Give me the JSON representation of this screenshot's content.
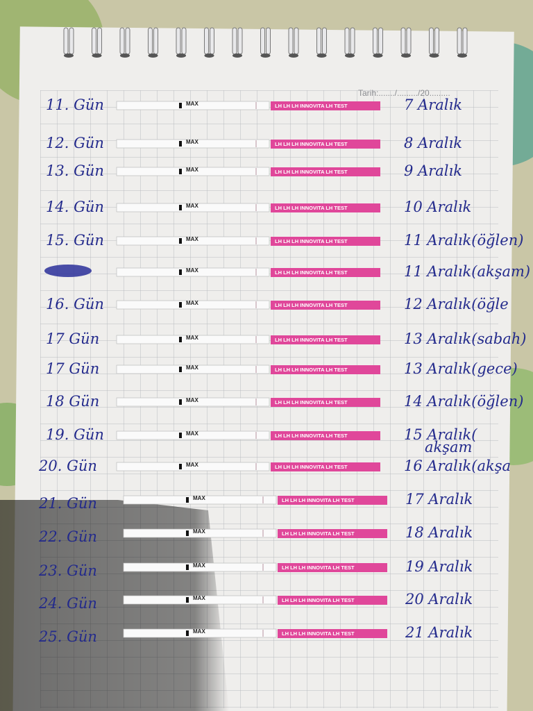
{
  "header": {
    "date_field": "Tarih:......./........./20........."
  },
  "strip": {
    "brand": "LH LH LH INNOVITA LH TEST",
    "max": "MAX"
  },
  "rows": [
    {
      "day": "11. Gün",
      "date": "7 Aralık"
    },
    {
      "day": "12. Gün",
      "date": "8 Aralık"
    },
    {
      "day": "13. Gün",
      "date": "9 Aralık"
    },
    {
      "day": "14. Gün",
      "date": "10 Aralık"
    },
    {
      "day": "15. Gün",
      "date": "11 Aralık(öğlen)"
    },
    {
      "date": "11 Aralık(akşam)"
    },
    {
      "day": "16. Gün",
      "date": "12 Aralık(öğle"
    },
    {
      "day": "17 Gün",
      "date": "13 Aralık(sabah)"
    },
    {
      "day": "17 Gün",
      "date": "13 Aralık(gece)"
    },
    {
      "day": "18 Gün",
      "date": "14 Aralık(öğlen)"
    },
    {
      "day": "19. Gün",
      "date": "15 Aralık(",
      "note": "akşam"
    },
    {
      "day": "20. Gün",
      "date": "16 Aralık(akşa"
    },
    {
      "day": "21. Gün",
      "date": "17 Aralık"
    },
    {
      "day": "22. Gün",
      "date": "18 Aralık"
    },
    {
      "day": "23. Gün",
      "date": "19 Aralık"
    },
    {
      "day": "24. Gün",
      "date": "20 Aralık"
    },
    {
      "day": "25. Gün",
      "date": "21 Aralık"
    }
  ]
}
